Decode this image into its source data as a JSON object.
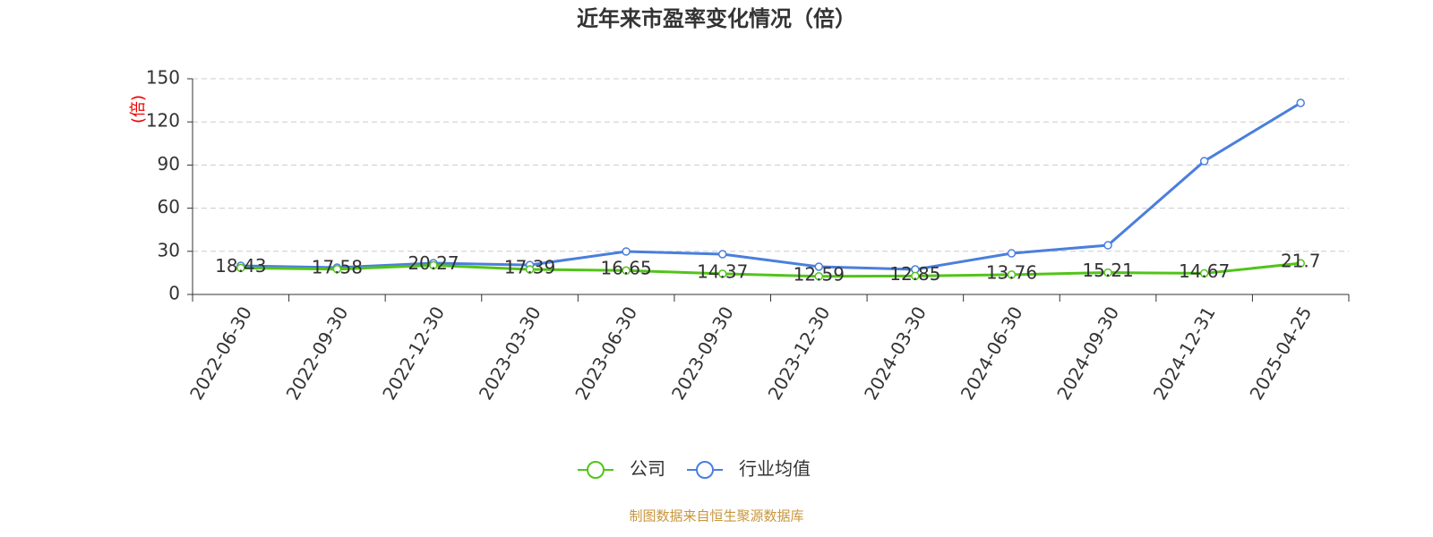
{
  "chart_data": {
    "type": "line",
    "title": "近年来市盈率变化情况（倍）",
    "y_label": "(倍)",
    "categories": [
      "2022-06-30",
      "2022-09-30",
      "2022-12-30",
      "2023-03-30",
      "2023-06-30",
      "2023-09-30",
      "2023-12-30",
      "2024-03-30",
      "2024-06-30",
      "2024-09-30",
      "2024-12-31",
      "2025-04-25"
    ],
    "series": [
      {
        "name": "公司",
        "color": "#52c41a",
        "values": [
          18.43,
          17.58,
          20.27,
          17.39,
          16.65,
          14.37,
          12.59,
          12.85,
          13.76,
          15.21,
          14.67,
          21.7
        ]
      },
      {
        "name": "行业均值",
        "color": "#4a7fdc",
        "values": [
          19.9,
          18.7,
          21.8,
          20.5,
          29.9,
          28.0,
          19.3,
          17.4,
          28.6,
          34.2,
          92.7,
          133.2
        ]
      }
    ],
    "ylim": [
      0,
      150
    ],
    "yticks": [
      0,
      30,
      60,
      90,
      120,
      150
    ],
    "grid": true,
    "source": "制图数据来自恒生聚源数据库"
  }
}
